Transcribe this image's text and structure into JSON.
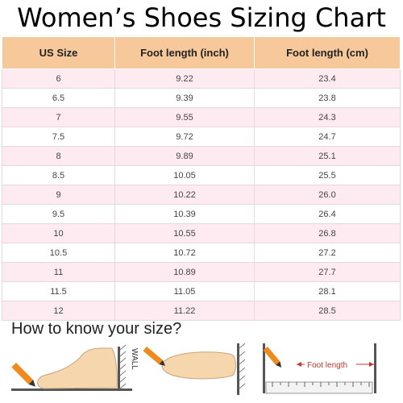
{
  "title": "Women’s Shoes Sizing Chart",
  "table": {
    "headers": [
      "US Size",
      "Foot length (inch)",
      "Foot length (cm)"
    ],
    "rows": [
      [
        "6",
        "9.22",
        "23.4"
      ],
      [
        "6.5",
        "9.39",
        "23.8"
      ],
      [
        "7",
        "9.55",
        "24.3"
      ],
      [
        "7.5",
        "9.72",
        "24.7"
      ],
      [
        "8",
        "9.89",
        "25.1"
      ],
      [
        "8.5",
        "10.05",
        "25.5"
      ],
      [
        "9",
        "10.22",
        "26.0"
      ],
      [
        "9.5",
        "10.39",
        "26.4"
      ],
      [
        "10",
        "10.55",
        "26.8"
      ],
      [
        "10.5",
        "10.72",
        "27.2"
      ],
      [
        "11",
        "10.89",
        "27.7"
      ],
      [
        "11.5",
        "11.05",
        "28.1"
      ],
      [
        "12",
        "11.22",
        "28.5"
      ]
    ]
  },
  "howto": "How to know your size?",
  "illustrations": {
    "wall_label": "WALL",
    "foot_length_label": "Foot length"
  },
  "colors": {
    "header_bg": "#f7c89a",
    "row_pink": "#fdebf1",
    "pencil": "#f08a1e"
  }
}
